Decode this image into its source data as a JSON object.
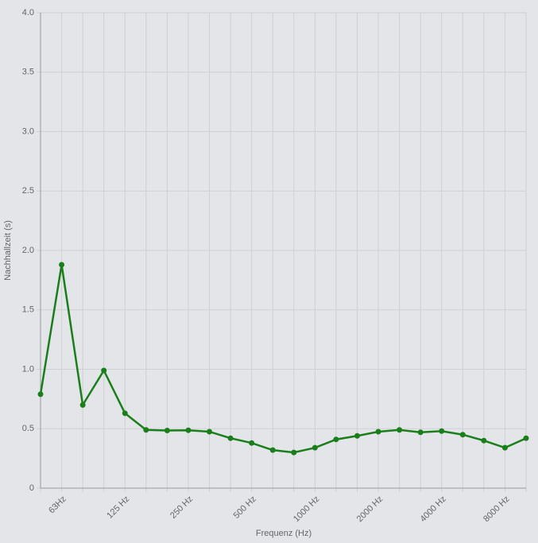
{
  "chart_data": {
    "type": "line",
    "x_label": "Frequenz (Hz)",
    "y_label": "Nachhallzeit (s)",
    "categories": [
      null,
      "63Hz",
      null,
      null,
      "125 Hz",
      null,
      null,
      "250 Hz",
      null,
      null,
      "500 Hz",
      null,
      null,
      "1000 Hz",
      null,
      null,
      "2000 Hz",
      null,
      null,
      "4000 Hz",
      null,
      null,
      "8000 Hz",
      null
    ],
    "series": [
      {
        "name": "Nachhallzeit",
        "color": "#1a7f1a",
        "values": [
          0.79,
          1.88,
          0.7,
          0.99,
          0.63,
          0.49,
          0.485,
          0.487,
          0.475,
          0.42,
          0.38,
          0.32,
          0.3,
          0.34,
          0.41,
          0.44,
          0.475,
          0.49,
          0.47,
          0.48,
          0.45,
          0.4,
          0.34,
          0.42
        ]
      }
    ],
    "ylim": [
      0,
      4.0
    ],
    "yticks": [
      0,
      0.5,
      {
        "value": 1.0,
        "label": "1.0"
      },
      1.5,
      {
        "value": 2.0,
        "label": "2.0"
      },
      2.5,
      {
        "value": 3.0,
        "label": "3.0"
      },
      3.5,
      {
        "value": 4.0,
        "label": "4.0"
      }
    ],
    "grid": true
  }
}
